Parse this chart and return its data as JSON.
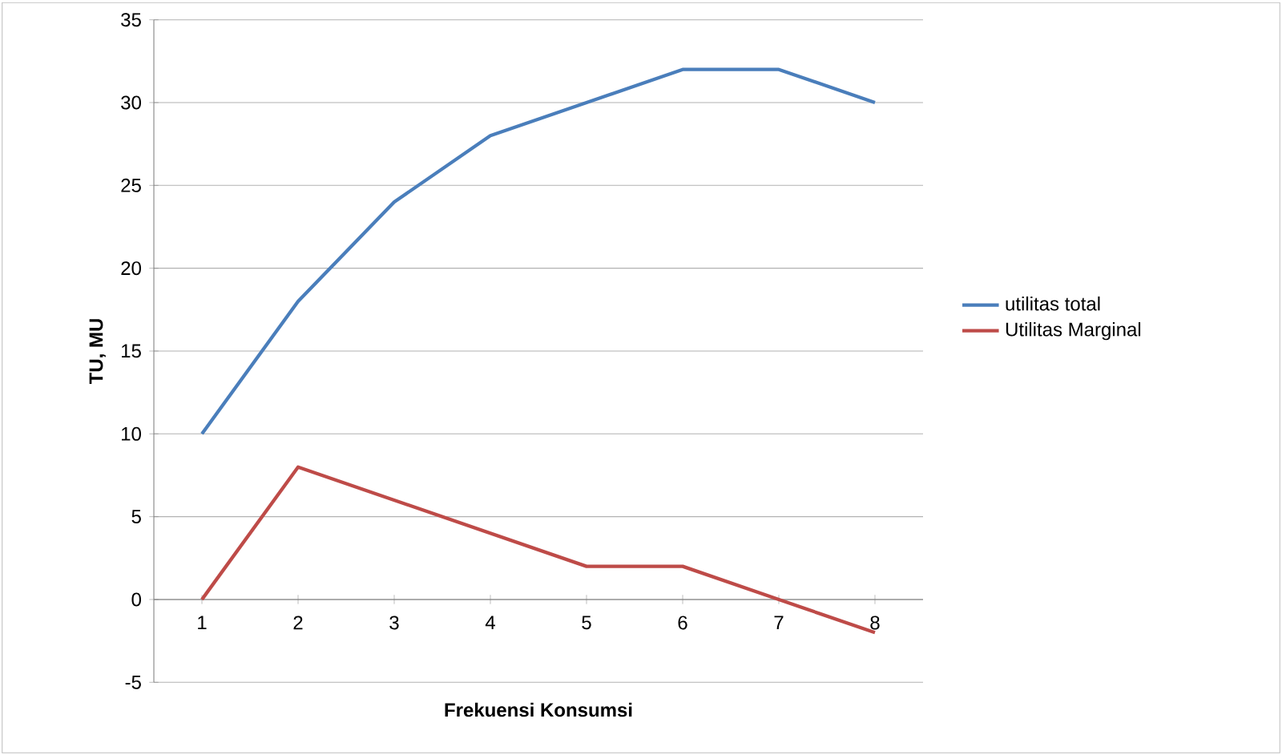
{
  "chart_data": {
    "type": "line",
    "xlabel": "Frekuensi Konsumsi",
    "ylabel": "TU, MU",
    "categories": [
      "1",
      "2",
      "3",
      "4",
      "5",
      "6",
      "7",
      "8"
    ],
    "series": [
      {
        "name": "utilitas total",
        "color": "#4a7ebb",
        "values": [
          10,
          18,
          24,
          28,
          30,
          32,
          32,
          30
        ]
      },
      {
        "name": "Utilitas Marginal",
        "color": "#be4b48",
        "values": [
          0,
          8,
          6,
          4,
          2,
          2,
          0,
          -2
        ]
      }
    ],
    "ylim": [
      -5,
      35
    ],
    "yticks": [
      -5,
      0,
      5,
      10,
      15,
      20,
      25,
      30,
      35
    ],
    "grid": "y",
    "legend": "right",
    "marker": "none",
    "line_style": "solid"
  }
}
